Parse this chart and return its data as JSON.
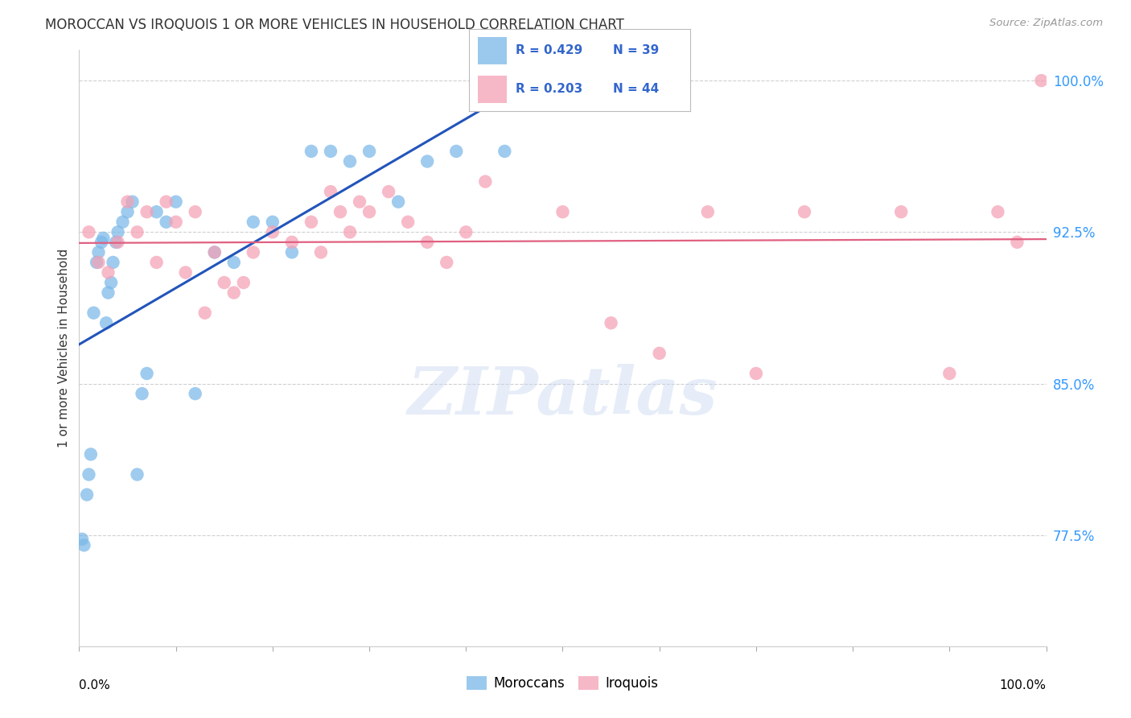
{
  "title": "MOROCCAN VS IROQUOIS 1 OR MORE VEHICLES IN HOUSEHOLD CORRELATION CHART",
  "source": "Source: ZipAtlas.com",
  "ylabel": "1 or more Vehicles in Household",
  "xlim": [
    0.0,
    100.0
  ],
  "ylim": [
    72.0,
    101.5
  ],
  "yticks": [
    77.5,
    85.0,
    92.5,
    100.0
  ],
  "ytick_labels": [
    "77.5%",
    "85.0%",
    "92.5%",
    "100.0%"
  ],
  "background_color": "#ffffff",
  "grid_color": "#d0d0d0",
  "moroccan_color": "#7ab8e8",
  "iroquois_color": "#f4a0b5",
  "moroccan_line_color": "#2255bb",
  "iroquois_line_color": "#e06080",
  "moroccan_x": [
    0.3,
    0.5,
    0.8,
    1.0,
    1.2,
    1.5,
    1.8,
    2.0,
    2.3,
    2.5,
    2.8,
    3.0,
    3.3,
    3.5,
    3.8,
    4.0,
    4.5,
    5.0,
    5.5,
    6.0,
    6.5,
    7.0,
    8.0,
    9.0,
    10.0,
    12.0,
    14.0,
    16.0,
    18.0,
    20.0,
    22.0,
    24.0,
    26.0,
    28.0,
    30.0,
    33.0,
    36.0,
    39.0,
    44.0
  ],
  "moroccan_y": [
    77.3,
    77.0,
    79.5,
    80.5,
    81.5,
    88.5,
    91.0,
    91.5,
    92.0,
    92.2,
    88.0,
    89.5,
    90.0,
    91.0,
    92.0,
    92.5,
    93.0,
    93.5,
    94.0,
    80.5,
    84.5,
    85.5,
    93.5,
    93.0,
    94.0,
    84.5,
    91.5,
    91.0,
    93.0,
    93.0,
    91.5,
    96.5,
    96.5,
    96.0,
    96.5,
    94.0,
    96.0,
    96.5,
    96.5
  ],
  "iroquois_x": [
    1.0,
    2.0,
    3.0,
    4.0,
    5.0,
    6.0,
    7.0,
    8.0,
    9.0,
    10.0,
    11.0,
    12.0,
    13.0,
    14.0,
    15.0,
    16.0,
    17.0,
    18.0,
    20.0,
    22.0,
    24.0,
    25.0,
    26.0,
    27.0,
    28.0,
    29.0,
    30.0,
    32.0,
    34.0,
    36.0,
    38.0,
    40.0,
    42.0,
    50.0,
    55.0,
    60.0,
    65.0,
    70.0,
    75.0,
    85.0,
    90.0,
    95.0,
    97.0,
    99.5
  ],
  "iroquois_y": [
    92.5,
    91.0,
    90.5,
    92.0,
    94.0,
    92.5,
    93.5,
    91.0,
    94.0,
    93.0,
    90.5,
    93.5,
    88.5,
    91.5,
    90.0,
    89.5,
    90.0,
    91.5,
    92.5,
    92.0,
    93.0,
    91.5,
    94.5,
    93.5,
    92.5,
    94.0,
    93.5,
    94.5,
    93.0,
    92.0,
    91.0,
    92.5,
    95.0,
    93.5,
    88.0,
    86.5,
    93.5,
    85.5,
    93.5,
    93.5,
    85.5,
    93.5,
    92.0,
    100.0
  ]
}
